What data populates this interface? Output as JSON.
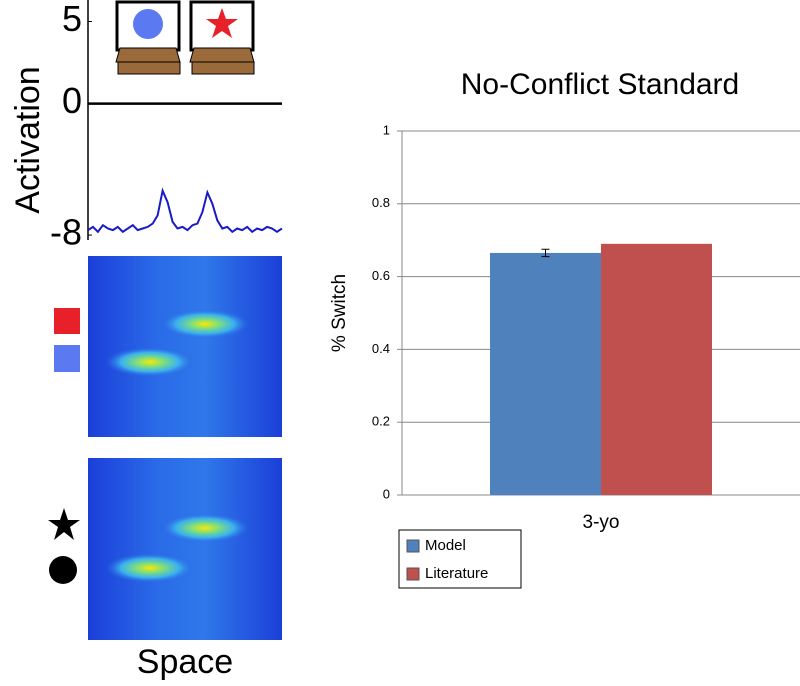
{
  "chart_data": [
    {
      "type": "line",
      "ylabel": "Activation",
      "xlabel": "Space",
      "color": "#1a1ac8",
      "ylim": [
        -8.3,
        5.7
      ],
      "yticks": [
        5,
        0,
        -8
      ],
      "values": [
        -7.7,
        -7.5,
        -7.8,
        -7.4,
        -7.6,
        -7.7,
        -7.5,
        -7.8,
        -7.6,
        -7.4,
        -7.7,
        -7.6,
        -7.5,
        -7.3,
        -6.8,
        -5.3,
        -6.0,
        -7.2,
        -7.6,
        -7.5,
        -7.7,
        -7.4,
        -7.3,
        -6.6,
        -5.4,
        -6.1,
        -7.1,
        -7.6,
        -7.5,
        -7.8,
        -7.6,
        -7.7,
        -7.5,
        -7.8,
        -7.6,
        -7.7,
        -7.5,
        -7.6,
        -7.8,
        -7.6
      ]
    },
    {
      "type": "bar",
      "title": "No-Conflict Standard",
      "ylabel": "% Switch",
      "categories": [
        "3-yo"
      ],
      "series": [
        {
          "name": "Model",
          "color": "#4f81bd",
          "values": [
            0.665
          ],
          "errors": [
            0.01
          ]
        },
        {
          "name": "Literature",
          "color": "#c0504d",
          "values": [
            0.69
          ]
        }
      ],
      "ylim": [
        0,
        1
      ],
      "yticks": [
        0,
        0.2,
        0.4,
        0.6,
        0.8,
        1
      ],
      "grid": true
    }
  ]
}
